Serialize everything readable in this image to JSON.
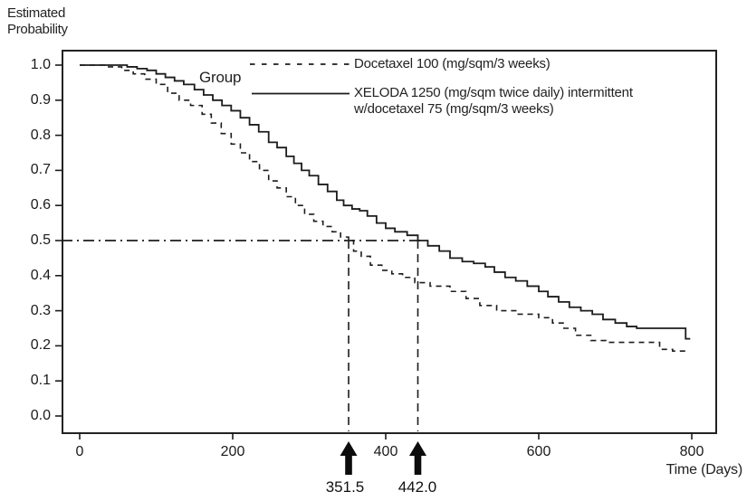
{
  "title": {
    "line1": "Estimated",
    "line2": "Probability"
  },
  "group_label": "Group",
  "legend": {
    "series1_label": "Docetaxel 100 (mg/sqm/3 weeks)",
    "series2_label_line1": "XELODA 1250 (mg/sqm twice daily) intermittent",
    "series2_label_line2": "w/docetaxel 75 (mg/sqm/3 weeks)"
  },
  "x_axis_title": "Time (Days)",
  "annotations": {
    "median1_label": "351.5",
    "median2_label": "442.0"
  },
  "colors": {
    "ink": "#1c1c1c",
    "background": "#ffffff"
  },
  "chart_data": {
    "type": "line",
    "subtype": "kaplan-meier-step",
    "title": "Estimated Probability vs Time (Days)",
    "xlabel": "Time (Days)",
    "ylabel": "Estimated Probability",
    "xlim": [
      0,
      830
    ],
    "ylim": [
      0.0,
      1.0
    ],
    "x_ticks": [
      0,
      200,
      400,
      600,
      800
    ],
    "y_ticks": [
      "1.0",
      "0.9",
      "0.8",
      "0.7",
      "0.6",
      "0.5",
      "0.4",
      "0.3",
      "0.2",
      "0.1",
      "0.0"
    ],
    "grid": false,
    "legend_position": "top-right-inside",
    "reference_lines": {
      "horizontal_probability": 0.5,
      "vertical_at_days": [
        351.5,
        442.0
      ]
    },
    "series": [
      {
        "name": "Docetaxel 100 (mg/sqm/3 weeks)",
        "style": "dashed",
        "median_days": 351.5,
        "points": [
          [
            0,
            1.0
          ],
          [
            35,
            0.995
          ],
          [
            55,
            0.985
          ],
          [
            70,
            0.975
          ],
          [
            85,
            0.96
          ],
          [
            100,
            0.945
          ],
          [
            115,
            0.92
          ],
          [
            130,
            0.9
          ],
          [
            145,
            0.885
          ],
          [
            160,
            0.86
          ],
          [
            172,
            0.835
          ],
          [
            185,
            0.805
          ],
          [
            198,
            0.775
          ],
          [
            210,
            0.75
          ],
          [
            222,
            0.725
          ],
          [
            235,
            0.7
          ],
          [
            247,
            0.67
          ],
          [
            258,
            0.65
          ],
          [
            270,
            0.625
          ],
          [
            282,
            0.6
          ],
          [
            294,
            0.575
          ],
          [
            306,
            0.555
          ],
          [
            318,
            0.54
          ],
          [
            330,
            0.525
          ],
          [
            341,
            0.51
          ],
          [
            351.5,
            0.5
          ],
          [
            358,
            0.47
          ],
          [
            368,
            0.455
          ],
          [
            380,
            0.43
          ],
          [
            395,
            0.415
          ],
          [
            408,
            0.405
          ],
          [
            422,
            0.395
          ],
          [
            438,
            0.38
          ],
          [
            458,
            0.37
          ],
          [
            484,
            0.355
          ],
          [
            505,
            0.335
          ],
          [
            523,
            0.315
          ],
          [
            545,
            0.3
          ],
          [
            570,
            0.29
          ],
          [
            600,
            0.28
          ],
          [
            618,
            0.265
          ],
          [
            633,
            0.25
          ],
          [
            648,
            0.23
          ],
          [
            668,
            0.215
          ],
          [
            688,
            0.21
          ],
          [
            742,
            0.21
          ],
          [
            758,
            0.19
          ],
          [
            775,
            0.185
          ],
          [
            795,
            0.18
          ]
        ]
      },
      {
        "name": "XELODA 1250 (mg/sqm twice daily) intermittent w/docetaxel 75 (mg/sqm/3 weeks)",
        "style": "solid",
        "median_days": 442.0,
        "points": [
          [
            0,
            1.0
          ],
          [
            50,
            1.0
          ],
          [
            62,
            0.995
          ],
          [
            75,
            0.99
          ],
          [
            88,
            0.985
          ],
          [
            100,
            0.975
          ],
          [
            112,
            0.965
          ],
          [
            124,
            0.955
          ],
          [
            136,
            0.945
          ],
          [
            150,
            0.93
          ],
          [
            162,
            0.915
          ],
          [
            174,
            0.9
          ],
          [
            186,
            0.885
          ],
          [
            198,
            0.87
          ],
          [
            210,
            0.85
          ],
          [
            222,
            0.83
          ],
          [
            234,
            0.81
          ],
          [
            247,
            0.78
          ],
          [
            258,
            0.765
          ],
          [
            270,
            0.74
          ],
          [
            280,
            0.72
          ],
          [
            290,
            0.7
          ],
          [
            300,
            0.685
          ],
          [
            312,
            0.66
          ],
          [
            324,
            0.64
          ],
          [
            336,
            0.615
          ],
          [
            345,
            0.6
          ],
          [
            356,
            0.59
          ],
          [
            366,
            0.585
          ],
          [
            376,
            0.57
          ],
          [
            388,
            0.55
          ],
          [
            400,
            0.535
          ],
          [
            412,
            0.525
          ],
          [
            428,
            0.515
          ],
          [
            442,
            0.5
          ],
          [
            455,
            0.485
          ],
          [
            470,
            0.47
          ],
          [
            484,
            0.45
          ],
          [
            500,
            0.44
          ],
          [
            515,
            0.435
          ],
          [
            530,
            0.425
          ],
          [
            542,
            0.41
          ],
          [
            556,
            0.395
          ],
          [
            570,
            0.385
          ],
          [
            585,
            0.37
          ],
          [
            600,
            0.355
          ],
          [
            612,
            0.34
          ],
          [
            626,
            0.325
          ],
          [
            640,
            0.31
          ],
          [
            655,
            0.3
          ],
          [
            670,
            0.29
          ],
          [
            684,
            0.275
          ],
          [
            700,
            0.265
          ],
          [
            715,
            0.255
          ],
          [
            728,
            0.25
          ],
          [
            788,
            0.25
          ],
          [
            792,
            0.22
          ],
          [
            798,
            0.22
          ]
        ]
      }
    ]
  }
}
